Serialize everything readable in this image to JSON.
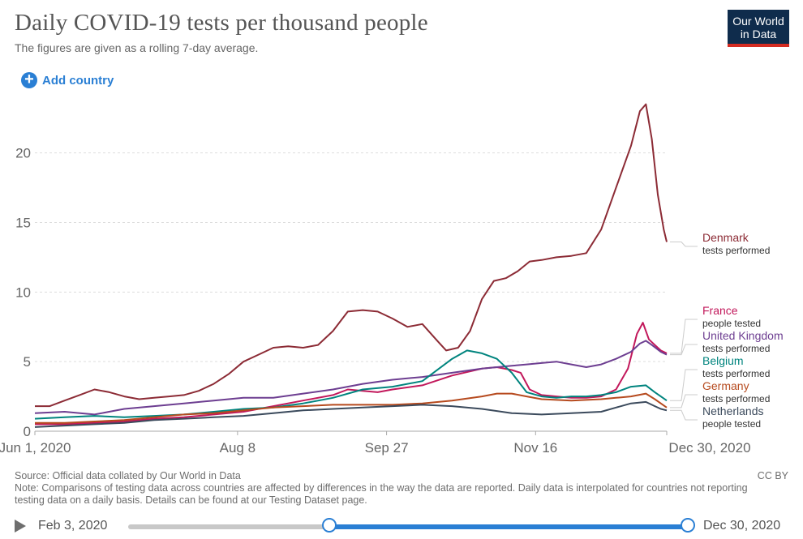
{
  "header": {
    "title": "Daily COVID-19 tests per thousand people",
    "subtitle": "The figures are given as a rolling 7-day average.",
    "logo_line1": "Our World",
    "logo_line2": "in Data",
    "add_country": "Add country"
  },
  "footer": {
    "source": "Source: Official data collated by Our World in Data",
    "note": "Note: Comparisons of testing data across countries are affected by differences in the way the data are reported. Daily data is interpolated for countries not reporting testing data on a daily basis. Details can be found at our Testing Dataset page.",
    "license": "CC BY"
  },
  "timeline": {
    "start_label": "Feb 3, 2020",
    "end_label": "Dec 30, 2020",
    "selected_start_fraction": 0.36,
    "selected_end_fraction": 1.0
  },
  "chart_data": {
    "type": "line",
    "x_tick_labels": [
      "Jun 1, 2020",
      "Aug 8",
      "Sep 27",
      "Nov 16",
      "Dec 30, 2020"
    ],
    "x_tick_days": [
      0,
      68,
      118,
      168,
      212
    ],
    "y_ticks": [
      0,
      5,
      10,
      15,
      20
    ],
    "ylim": [
      0,
      24
    ],
    "xlim": [
      0,
      212
    ],
    "grid": true,
    "series": [
      {
        "name": "Denmark",
        "sublabel": "tests performed",
        "color": "#8c2b35",
        "points": [
          [
            0,
            1.8
          ],
          [
            5,
            1.8
          ],
          [
            10,
            2.2
          ],
          [
            15,
            2.6
          ],
          [
            20,
            3.0
          ],
          [
            25,
            2.8
          ],
          [
            30,
            2.5
          ],
          [
            35,
            2.3
          ],
          [
            40,
            2.4
          ],
          [
            45,
            2.5
          ],
          [
            50,
            2.6
          ],
          [
            55,
            2.9
          ],
          [
            60,
            3.4
          ],
          [
            65,
            4.1
          ],
          [
            70,
            5.0
          ],
          [
            75,
            5.5
          ],
          [
            80,
            6.0
          ],
          [
            85,
            6.1
          ],
          [
            90,
            6.0
          ],
          [
            95,
            6.2
          ],
          [
            100,
            7.2
          ],
          [
            105,
            8.6
          ],
          [
            110,
            8.7
          ],
          [
            115,
            8.6
          ],
          [
            120,
            8.1
          ],
          [
            125,
            7.5
          ],
          [
            130,
            7.7
          ],
          [
            135,
            6.5
          ],
          [
            138,
            5.8
          ],
          [
            142,
            6.0
          ],
          [
            146,
            7.2
          ],
          [
            150,
            9.5
          ],
          [
            154,
            10.8
          ],
          [
            158,
            11.0
          ],
          [
            162,
            11.5
          ],
          [
            166,
            12.2
          ],
          [
            170,
            12.3
          ],
          [
            175,
            12.5
          ],
          [
            180,
            12.6
          ],
          [
            185,
            12.8
          ],
          [
            190,
            14.5
          ],
          [
            195,
            17.5
          ],
          [
            200,
            20.5
          ],
          [
            203,
            23.0
          ],
          [
            205,
            23.5
          ],
          [
            207,
            21.0
          ],
          [
            209,
            17.0
          ],
          [
            211,
            14.5
          ],
          [
            212,
            13.6
          ]
        ]
      },
      {
        "name": "France",
        "sublabel": "people tested",
        "color": "#c2185b",
        "points": [
          [
            0,
            0.5
          ],
          [
            10,
            0.5
          ],
          [
            20,
            0.6
          ],
          [
            30,
            0.7
          ],
          [
            40,
            0.9
          ],
          [
            50,
            1.0
          ],
          [
            60,
            1.2
          ],
          [
            70,
            1.4
          ],
          [
            80,
            1.8
          ],
          [
            90,
            2.2
          ],
          [
            100,
            2.6
          ],
          [
            105,
            3.0
          ],
          [
            110,
            2.9
          ],
          [
            115,
            2.8
          ],
          [
            120,
            3.0
          ],
          [
            130,
            3.3
          ],
          [
            140,
            4.0
          ],
          [
            150,
            4.5
          ],
          [
            155,
            4.6
          ],
          [
            160,
            4.4
          ],
          [
            163,
            4.2
          ],
          [
            166,
            3.0
          ],
          [
            170,
            2.6
          ],
          [
            175,
            2.5
          ],
          [
            180,
            2.4
          ],
          [
            185,
            2.4
          ],
          [
            190,
            2.5
          ],
          [
            195,
            3.0
          ],
          [
            199,
            4.5
          ],
          [
            202,
            7.0
          ],
          [
            204,
            7.8
          ],
          [
            206,
            6.6
          ],
          [
            208,
            6.2
          ],
          [
            210,
            5.8
          ],
          [
            212,
            5.6
          ]
        ]
      },
      {
        "name": "United Kingdom",
        "sublabel": "tests performed",
        "color": "#6d3e91",
        "points": [
          [
            0,
            1.3
          ],
          [
            10,
            1.4
          ],
          [
            20,
            1.2
          ],
          [
            30,
            1.6
          ],
          [
            40,
            1.8
          ],
          [
            50,
            2.0
          ],
          [
            60,
            2.2
          ],
          [
            70,
            2.4
          ],
          [
            80,
            2.4
          ],
          [
            90,
            2.7
          ],
          [
            100,
            3.0
          ],
          [
            110,
            3.4
          ],
          [
            120,
            3.7
          ],
          [
            130,
            3.9
          ],
          [
            140,
            4.2
          ],
          [
            150,
            4.5
          ],
          [
            160,
            4.7
          ],
          [
            165,
            4.8
          ],
          [
            170,
            4.9
          ],
          [
            175,
            5.0
          ],
          [
            180,
            4.8
          ],
          [
            185,
            4.6
          ],
          [
            190,
            4.8
          ],
          [
            195,
            5.2
          ],
          [
            200,
            5.7
          ],
          [
            203,
            6.3
          ],
          [
            205,
            6.5
          ],
          [
            207,
            6.2
          ],
          [
            210,
            5.7
          ],
          [
            212,
            5.5
          ]
        ]
      },
      {
        "name": "Belgium",
        "sublabel": "tests performed",
        "color": "#00847e",
        "points": [
          [
            0,
            0.9
          ],
          [
            10,
            1.0
          ],
          [
            20,
            1.1
          ],
          [
            30,
            1.0
          ],
          [
            40,
            1.1
          ],
          [
            50,
            1.2
          ],
          [
            60,
            1.4
          ],
          [
            70,
            1.6
          ],
          [
            80,
            1.7
          ],
          [
            90,
            2.0
          ],
          [
            100,
            2.4
          ],
          [
            110,
            3.0
          ],
          [
            120,
            3.2
          ],
          [
            130,
            3.6
          ],
          [
            140,
            5.2
          ],
          [
            145,
            5.8
          ],
          [
            150,
            5.6
          ],
          [
            155,
            5.2
          ],
          [
            160,
            4.2
          ],
          [
            165,
            2.8
          ],
          [
            170,
            2.5
          ],
          [
            175,
            2.4
          ],
          [
            180,
            2.5
          ],
          [
            185,
            2.5
          ],
          [
            190,
            2.6
          ],
          [
            195,
            2.8
          ],
          [
            200,
            3.2
          ],
          [
            205,
            3.3
          ],
          [
            208,
            2.8
          ],
          [
            210,
            2.5
          ],
          [
            212,
            2.2
          ]
        ]
      },
      {
        "name": "Germany",
        "sublabel": "tests performed",
        "color": "#b64a1e",
        "points": [
          [
            0,
            0.6
          ],
          [
            10,
            0.6
          ],
          [
            20,
            0.7
          ],
          [
            30,
            0.8
          ],
          [
            40,
            1.0
          ],
          [
            50,
            1.2
          ],
          [
            60,
            1.3
          ],
          [
            70,
            1.5
          ],
          [
            80,
            1.7
          ],
          [
            90,
            1.8
          ],
          [
            100,
            1.9
          ],
          [
            110,
            1.9
          ],
          [
            120,
            1.9
          ],
          [
            130,
            2.0
          ],
          [
            140,
            2.2
          ],
          [
            150,
            2.5
          ],
          [
            155,
            2.7
          ],
          [
            160,
            2.7
          ],
          [
            165,
            2.5
          ],
          [
            170,
            2.3
          ],
          [
            180,
            2.2
          ],
          [
            190,
            2.3
          ],
          [
            195,
            2.4
          ],
          [
            200,
            2.5
          ],
          [
            205,
            2.7
          ],
          [
            208,
            2.3
          ],
          [
            210,
            2.0
          ],
          [
            212,
            1.7
          ]
        ]
      },
      {
        "name": "Netherlands",
        "sublabel": "people tested",
        "color": "#3b4a5c",
        "points": [
          [
            0,
            0.3
          ],
          [
            10,
            0.4
          ],
          [
            20,
            0.5
          ],
          [
            30,
            0.6
          ],
          [
            40,
            0.8
          ],
          [
            50,
            0.9
          ],
          [
            60,
            1.0
          ],
          [
            70,
            1.1
          ],
          [
            80,
            1.3
          ],
          [
            90,
            1.5
          ],
          [
            100,
            1.6
          ],
          [
            110,
            1.7
          ],
          [
            120,
            1.8
          ],
          [
            130,
            1.9
          ],
          [
            140,
            1.8
          ],
          [
            150,
            1.6
          ],
          [
            160,
            1.3
          ],
          [
            170,
            1.2
          ],
          [
            180,
            1.3
          ],
          [
            190,
            1.4
          ],
          [
            195,
            1.7
          ],
          [
            200,
            2.0
          ],
          [
            205,
            2.1
          ],
          [
            208,
            1.8
          ],
          [
            210,
            1.6
          ],
          [
            212,
            1.5
          ]
        ]
      }
    ]
  }
}
